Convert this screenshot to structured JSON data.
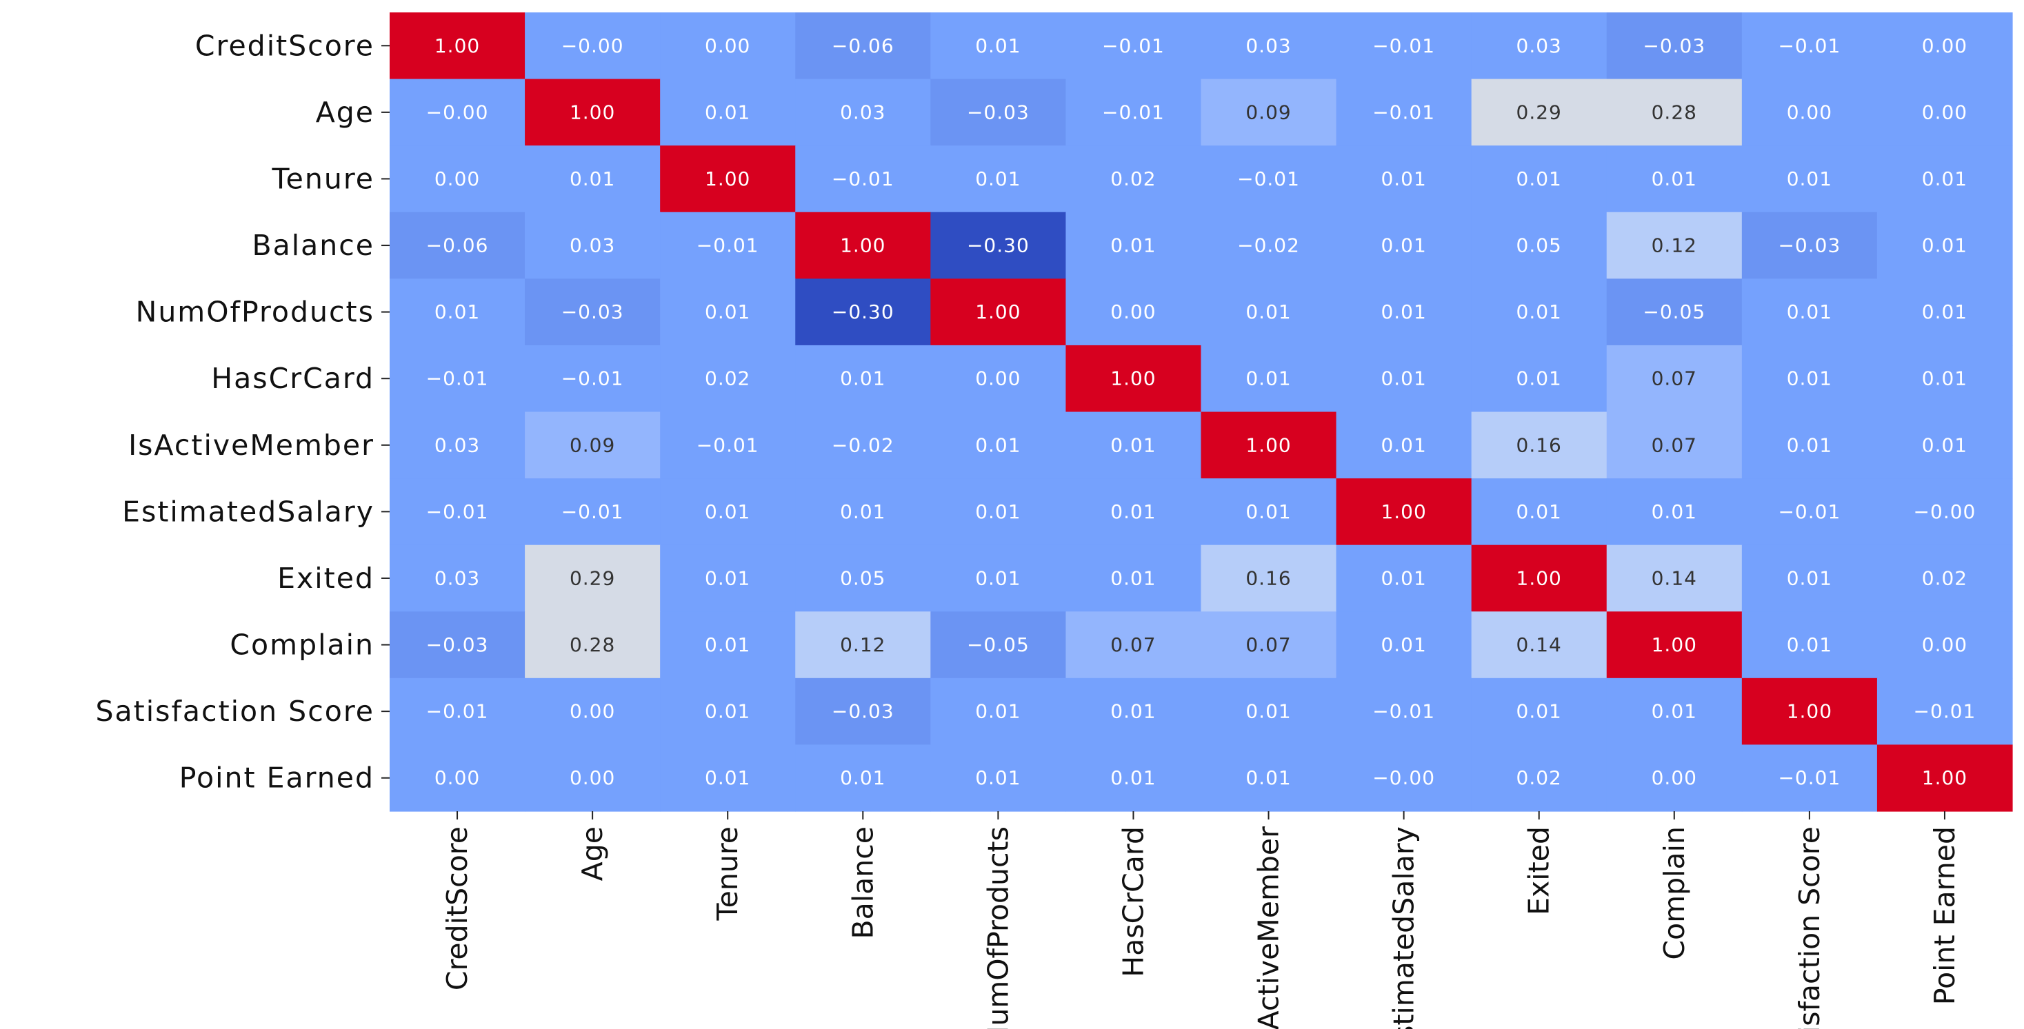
{
  "chart_data": {
    "type": "heatmap",
    "title": "",
    "xlabel": "",
    "ylabel": "",
    "colormap": "coolwarm",
    "vmin": -0.3,
    "vmax": 1.0,
    "colorbar": false,
    "rows": [
      "CreditScore",
      "Age",
      "Tenure",
      "Balance",
      "NumOfProducts",
      "HasCrCard",
      "IsActiveMember",
      "EstimatedSalary",
      "Exited",
      "Complain",
      "Satisfaction Score",
      "Point Earned"
    ],
    "columns": [
      "CreditScore",
      "Age",
      "Tenure",
      "Balance",
      "NumOfProducts",
      "HasCrCard",
      "IsActiveMember",
      "EstimatedSalary",
      "Exited",
      "Complain",
      "Satisfaction Score",
      "Point Earned"
    ],
    "values": [
      [
        1.0,
        -0.0,
        0.0,
        -0.06,
        0.01,
        -0.01,
        0.03,
        -0.01,
        0.03,
        -0.03,
        -0.01,
        0.0
      ],
      [
        -0.0,
        1.0,
        0.01,
        0.03,
        -0.03,
        -0.01,
        0.09,
        -0.01,
        0.29,
        0.28,
        0.0,
        0.0
      ],
      [
        0.0,
        0.01,
        1.0,
        -0.01,
        0.01,
        0.02,
        -0.01,
        0.01,
        0.01,
        0.01,
        0.01,
        0.01
      ],
      [
        -0.06,
        0.03,
        -0.01,
        1.0,
        -0.3,
        0.01,
        -0.02,
        0.01,
        0.05,
        0.12,
        -0.03,
        0.01
      ],
      [
        0.01,
        -0.03,
        0.01,
        -0.3,
        1.0,
        0.0,
        0.01,
        0.01,
        0.01,
        -0.05,
        0.01,
        0.01
      ],
      [
        -0.01,
        -0.01,
        0.02,
        0.01,
        0.0,
        1.0,
        0.01,
        0.01,
        0.01,
        0.07,
        0.01,
        0.01
      ],
      [
        0.03,
        0.09,
        -0.01,
        -0.02,
        0.01,
        0.01,
        1.0,
        0.01,
        0.16,
        0.07,
        0.01,
        0.01
      ],
      [
        -0.01,
        -0.01,
        0.01,
        0.01,
        0.01,
        0.01,
        0.01,
        1.0,
        0.01,
        0.01,
        -0.01,
        -0.0
      ],
      [
        0.03,
        0.29,
        0.01,
        0.05,
        0.01,
        0.01,
        0.16,
        0.01,
        1.0,
        0.14,
        0.01,
        0.02
      ],
      [
        -0.03,
        0.28,
        0.01,
        0.12,
        -0.05,
        0.07,
        0.07,
        0.01,
        0.14,
        1.0,
        0.01,
        0.0
      ],
      [
        -0.01,
        0.0,
        0.01,
        -0.03,
        0.01,
        0.01,
        0.01,
        -0.01,
        0.01,
        0.01,
        1.0,
        -0.01
      ],
      [
        0.0,
        0.0,
        0.01,
        0.01,
        0.01,
        0.01,
        0.01,
        -0.0,
        0.02,
        0.0,
        -0.01,
        1.0
      ]
    ],
    "cell_labels": [
      [
        "1.00",
        "−0.00",
        "0.00",
        "−0.06",
        "0.01",
        "−0.01",
        "0.03",
        "−0.01",
        "0.03",
        "−0.03",
        "−0.01",
        "0.00"
      ],
      [
        "−0.00",
        "1.00",
        "0.01",
        "0.03",
        "−0.03",
        "−0.01",
        "0.09",
        "−0.01",
        "0.29",
        "0.28",
        "0.00",
        "0.00"
      ],
      [
        "0.00",
        "0.01",
        "1.00",
        "−0.01",
        "0.01",
        "0.02",
        "−0.01",
        "0.01",
        "0.01",
        "0.01",
        "0.01",
        "0.01"
      ],
      [
        "−0.06",
        "0.03",
        "−0.01",
        "1.00",
        "−0.30",
        "0.01",
        "−0.02",
        "0.01",
        "0.05",
        "0.12",
        "−0.03",
        "0.01"
      ],
      [
        "0.01",
        "−0.03",
        "0.01",
        "−0.30",
        "1.00",
        "0.00",
        "0.01",
        "0.01",
        "0.01",
        "−0.05",
        "0.01",
        "0.01"
      ],
      [
        "−0.01",
        "−0.01",
        "0.02",
        "0.01",
        "0.00",
        "1.00",
        "0.01",
        "0.01",
        "0.01",
        "0.07",
        "0.01",
        "0.01"
      ],
      [
        "0.03",
        "0.09",
        "−0.01",
        "−0.02",
        "0.01",
        "0.01",
        "1.00",
        "0.01",
        "0.16",
        "0.07",
        "0.01",
        "0.01"
      ],
      [
        "−0.01",
        "−0.01",
        "0.01",
        "0.01",
        "0.01",
        "0.01",
        "0.01",
        "1.00",
        "0.01",
        "0.01",
        "−0.01",
        "−0.00"
      ],
      [
        "0.03",
        "0.29",
        "0.01",
        "0.05",
        "0.01",
        "0.01",
        "0.16",
        "0.01",
        "1.00",
        "0.14",
        "0.01",
        "0.02"
      ],
      [
        "−0.03",
        "0.28",
        "0.01",
        "0.12",
        "−0.05",
        "0.07",
        "0.07",
        "0.01",
        "0.14",
        "1.00",
        "0.01",
        "0.00"
      ],
      [
        "−0.01",
        "0.00",
        "0.01",
        "−0.03",
        "0.01",
        "0.01",
        "0.01",
        "−0.01",
        "0.01",
        "0.01",
        "1.00",
        "−0.01"
      ],
      [
        "0.00",
        "0.00",
        "0.01",
        "0.01",
        "0.01",
        "0.01",
        "0.01",
        "−0.00",
        "0.02",
        "0.00",
        "−0.01",
        "1.00"
      ]
    ]
  },
  "colors": {
    "strong_positive": "#d7001f",
    "high_positive": "#d5dbe6",
    "moderate_positive": "#b6cdf9",
    "light_positive": "#93b5fd",
    "near_zero": "#75a1fd",
    "slight_negative": "#6b94f3",
    "strong_negative": "#2f4dc2",
    "text_dark": "#333333",
    "text_light": "#ffffff"
  }
}
